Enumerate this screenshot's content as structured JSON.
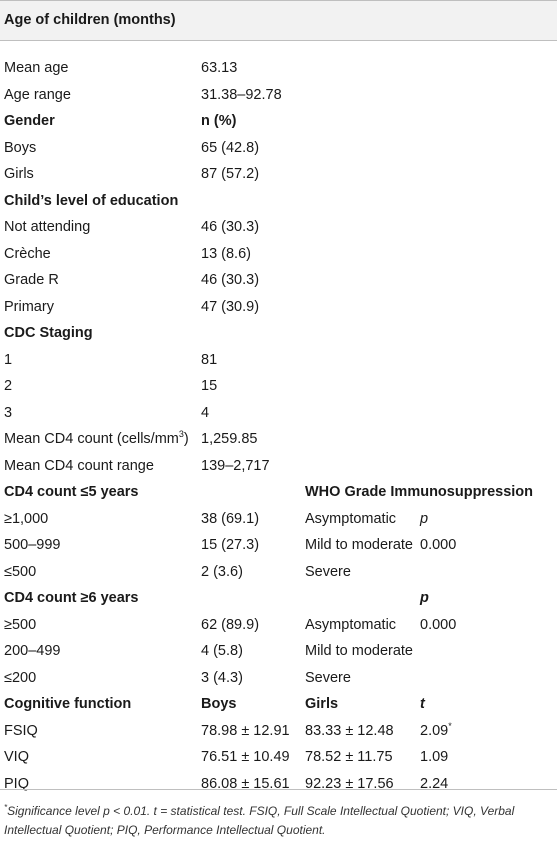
{
  "header": {
    "title": "Age of children (months)"
  },
  "rows": [
    {
      "c1": "Mean age",
      "c2": "63.13"
    },
    {
      "c1": "Age range",
      "c2": "31.38–92.78"
    },
    {
      "c1": "Gender",
      "c2": "n (%)",
      "bold": true
    },
    {
      "c1": "Boys",
      "c2": "65 (42.8)"
    },
    {
      "c1": "Girls",
      "c2": "87 (57.2)"
    },
    {
      "c1": "Child’s level of education",
      "bold": true
    },
    {
      "c1": "Not attending",
      "c2": "46 (30.3)"
    },
    {
      "c1": "Crèche",
      "c2": "13 (8.6)"
    },
    {
      "c1": "Grade R",
      "c2": "46 (30.3)"
    },
    {
      "c1": "Primary",
      "c2": "47 (30.9)"
    },
    {
      "c1": "CDC Staging",
      "bold": true
    },
    {
      "c1": "1",
      "c2": "81"
    },
    {
      "c1": "2",
      "c2": "15"
    },
    {
      "c1": "3",
      "c2": "4"
    },
    {
      "c1": "Mean CD4 count (cells/mm",
      "c1_sup": "3",
      "c1_after": ")",
      "c2": "1,259.85"
    },
    {
      "c1": "Mean CD4 count range",
      "c2": "139–2,717"
    },
    {
      "c1": "CD4 count ≤5 years",
      "c3": "WHO Grade Immunosuppression",
      "bold": true
    },
    {
      "c1": "≥1,000",
      "c2": "38 (69.1)",
      "c3": "Asymptomatic",
      "c4": "p",
      "c4_italic": true
    },
    {
      "c1": "500–999",
      "c2": "15 (27.3)",
      "c3": "Mild to moderate",
      "c4": "0.000"
    },
    {
      "c1": "≤500",
      "c2": "2 (3.6)",
      "c3": "Severe"
    },
    {
      "c1": "CD4 count ≥6 years",
      "c4": "p",
      "c4_italic": true,
      "bold": true
    },
    {
      "c1": "≥500",
      "c2": "62 (89.9)",
      "c3": "Asymptomatic",
      "c4": "0.000"
    },
    {
      "c1": "200–499",
      "c2": "4 (5.8)",
      "c3": "Mild to moderate"
    },
    {
      "c1": "≤200",
      "c2": "3 (4.3)",
      "c3": "Severe"
    },
    {
      "c1": "Cognitive function",
      "c2": "Boys",
      "c3": "Girls",
      "c4": "t",
      "c4_italic": true,
      "bold": true
    },
    {
      "c1": "FSIQ",
      "c2": "78.98 ± 12.91",
      "c3": "83.33 ± 12.48",
      "c4": "2.09",
      "c4_sup": "*"
    },
    {
      "c1": "VIQ",
      "c2": "76.51 ± 10.49",
      "c3": "78.52 ± 11.75",
      "c4": "1.09"
    },
    {
      "c1": "PIQ",
      "c2": "86.08 ± 15.61",
      "c3": "92.23 ± 17.56",
      "c4": "2.24"
    }
  ],
  "footnote": {
    "marker": "*",
    "text": "Significance level p < 0.01. t = statistical test. FSIQ, Full Scale Intellectual Quotient; VIQ, Verbal Intellectual Quotient; PIQ, Performance Intellectual Quotient."
  }
}
